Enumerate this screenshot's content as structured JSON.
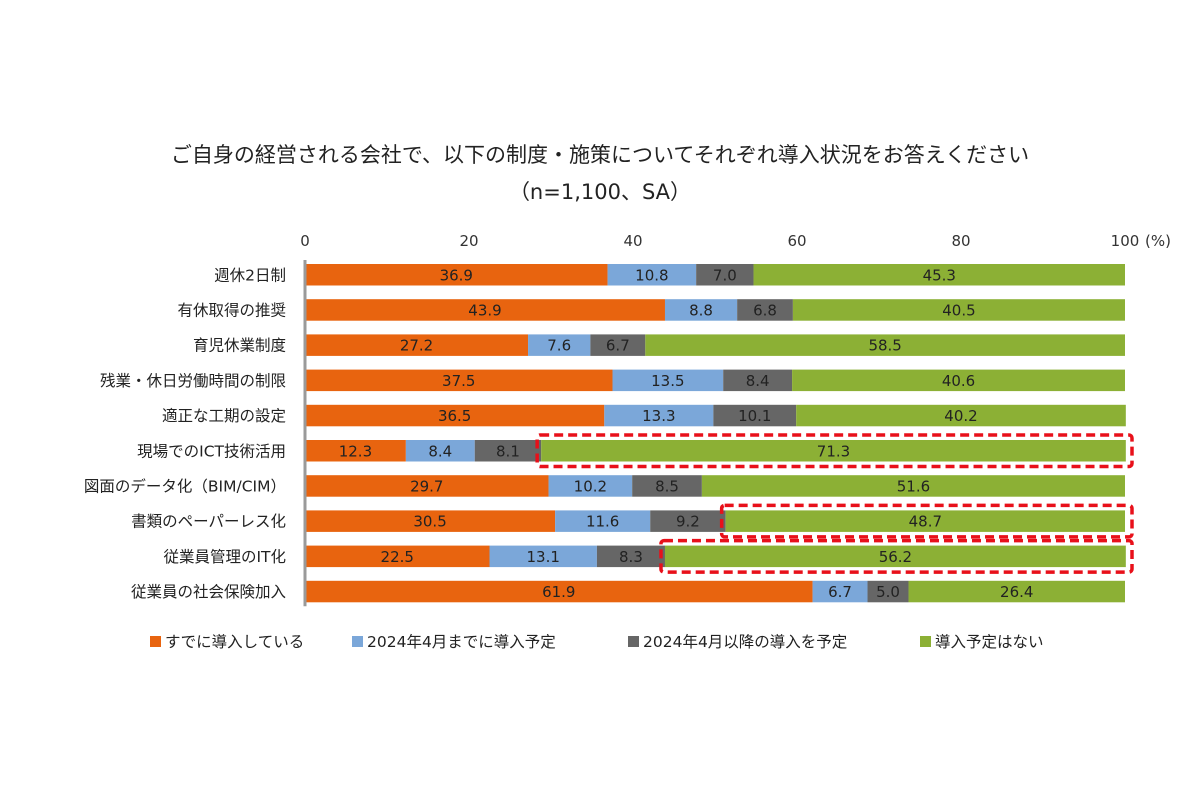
{
  "chart_data": {
    "type": "bar",
    "orientation": "horizontal",
    "stacked": true,
    "title": "ご自身の経営される会社で、以下の制度・施策についてそれぞれ導入状況をお答えください",
    "subtitle": "（n=1,100、SA）",
    "xlim": [
      0,
      100
    ],
    "xticks": [
      "0",
      "20",
      "40",
      "60",
      "80",
      "100"
    ],
    "unit_label": "(%)",
    "grid": false,
    "legend_position": "bottom",
    "categories": [
      "週休2日制",
      "有休取得の推奨",
      "育児休業制度",
      "残業・休日労働時間の制限",
      "適正な工期の設定",
      "現場でのICT技術活用",
      "図面のデータ化（BIM/CIM）",
      "書類のペーパーレス化",
      "従業員管理のIT化",
      "従業員の社会保険加入"
    ],
    "series": [
      {
        "name": "すでに導入している",
        "color": "#E8640F",
        "values": [
          36.9,
          43.9,
          27.2,
          37.5,
          36.5,
          12.3,
          29.7,
          30.5,
          22.5,
          61.9
        ]
      },
      {
        "name": "2024年4月までに導入予定",
        "color": "#7BA7D9",
        "values": [
          10.8,
          8.8,
          7.6,
          13.5,
          13.3,
          8.4,
          10.2,
          11.6,
          13.1,
          6.7
        ]
      },
      {
        "name": "2024年4月以降の導入を予定",
        "color": "#666666",
        "values": [
          7.0,
          6.8,
          6.7,
          8.4,
          10.1,
          8.1,
          8.5,
          9.2,
          8.3,
          5.0
        ]
      },
      {
        "name": "導入予定はない",
        "color": "#8CB035",
        "values": [
          45.3,
          40.5,
          58.5,
          40.6,
          40.2,
          71.3,
          51.6,
          48.7,
          56.2,
          26.4
        ]
      }
    ],
    "highlighted_categories": [
      5,
      7,
      8
    ],
    "highlight_color": "#E8101A"
  }
}
